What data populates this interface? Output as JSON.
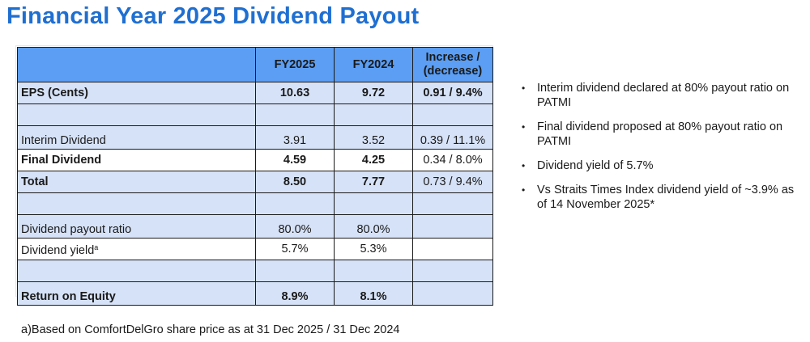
{
  "title": "Financial Year 2025 Dividend Payout",
  "table": {
    "headers": [
      "",
      "FY2025",
      "FY2024",
      "Increase / (decrease)"
    ],
    "header_change_line1": "Increase /",
    "header_change_line2": "(decrease)",
    "rows": [
      {
        "label": "EPS (Cents)",
        "fy2025": "10.63",
        "fy2024": "9.72",
        "change": "0.91 / 9.4%",
        "bold": true
      },
      {
        "label": "",
        "fy2025": "",
        "fy2024": "",
        "change": "",
        "bold": false
      },
      {
        "label": "Interim Dividend",
        "fy2025": "3.91",
        "fy2024": "3.52",
        "change": "0.39 / 11.1%",
        "bold": false
      },
      {
        "label": "Final Dividend",
        "fy2025": "4.59",
        "fy2024": "4.25",
        "change": "0.34 / 8.0%",
        "bold": true
      },
      {
        "label": "Total",
        "fy2025": "8.50",
        "fy2024": "7.77",
        "change": "0.73 / 9.4%",
        "bold": true
      },
      {
        "label": "",
        "fy2025": "",
        "fy2024": "",
        "change": "",
        "bold": false
      },
      {
        "label": "Dividend payout ratio",
        "fy2025": "80.0%",
        "fy2024": "80.0%",
        "change": "",
        "bold": false
      },
      {
        "label": "Dividend yield",
        "label_sup": "a",
        "fy2025": "5.7%",
        "fy2024": "5.3%",
        "change": "",
        "bold": false
      },
      {
        "label": "",
        "fy2025": "",
        "fy2024": "",
        "change": "",
        "bold": false
      },
      {
        "label": "Return on Equity",
        "fy2025": "8.9%",
        "fy2024": "8.1%",
        "change": "",
        "bold": true
      }
    ]
  },
  "bullets": [
    "Interim dividend declared at 80% payout ratio on PATMI",
    "Final dividend proposed at 80% payout ratio on PATMI",
    "Dividend yield of 5.7%",
    "Vs Straits Times Index dividend yield of ~3.9% as of 14 November 2025*"
  ],
  "footnote": "a)Based on ComfortDelGro share price as at 31 Dec 2025 / 31 Dec 2024",
  "colors": {
    "title": "#1f6fd1",
    "header_fill": "#5b9ef3",
    "alt_row_fill": "#d6e2f7"
  }
}
